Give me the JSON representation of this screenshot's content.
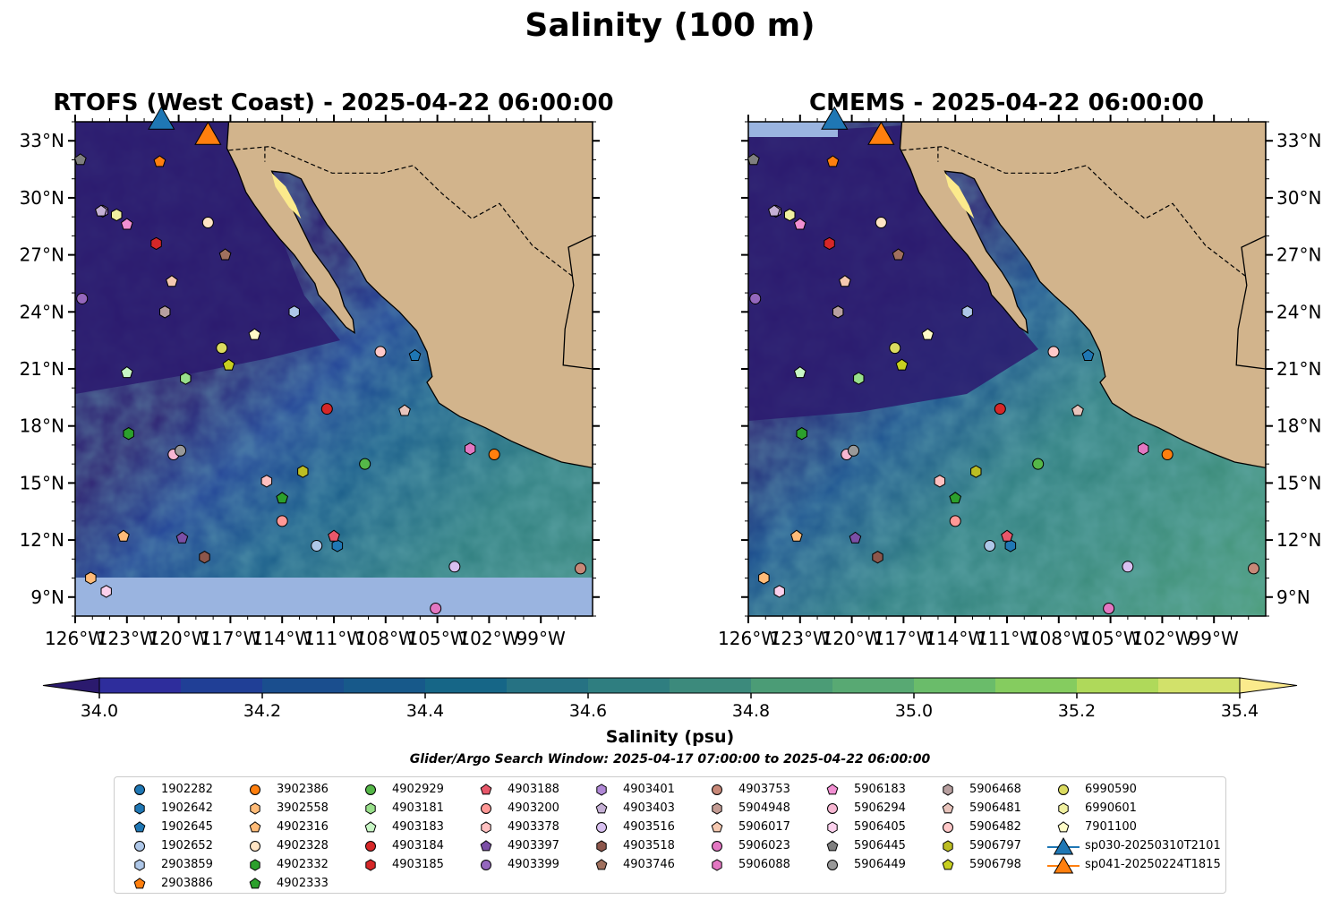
{
  "title": "Salinity (100 m)",
  "panels": [
    {
      "title": "RTOFS (West Coast) - 2025-04-22 06:00:00"
    },
    {
      "title": "CMEMS - 2025-04-22 06:00:00"
    }
  ],
  "colorbar": {
    "label": "Salinity (psu)",
    "ticks": [
      "34.0",
      "34.2",
      "34.4",
      "34.6",
      "34.8",
      "35.0",
      "35.2",
      "35.4"
    ],
    "levels": [
      34.0,
      34.1,
      34.2,
      34.3,
      34.4,
      34.5,
      34.6,
      34.7,
      34.8,
      34.9,
      35.0,
      35.1,
      35.2,
      35.3,
      35.4
    ],
    "colors": [
      "#2b1a6e",
      "#2e2d9c",
      "#203f96",
      "#1a4e8e",
      "#17598a",
      "#166687",
      "#267283",
      "#2f7e80",
      "#3c8a7c",
      "#4b9c76",
      "#58a973",
      "#6abc6a",
      "#85cc5f",
      "#afd95a",
      "#d2e16a",
      "#fbea8c"
    ],
    "extend": "both"
  },
  "search_window": "Glider/Argo Search Window: 2025-04-17 07:00:00 to 2025-04-22 06:00:00",
  "colors": {
    "land": "#d2b48c",
    "ocean_mask": "#9ab4e0",
    "river": "#a0b8d8"
  },
  "chart_data": {
    "type": "map",
    "variable": "Salinity",
    "depth": "100 m",
    "units": "psu",
    "xlim": [
      -126,
      -96
    ],
    "ylim": [
      8,
      34
    ],
    "xticks": [
      "126°W",
      "123°W",
      "120°W",
      "117°W",
      "114°W",
      "111°W",
      "108°W",
      "105°W",
      "102°W",
      "99°W"
    ],
    "yticks": [
      "9°N",
      "12°N",
      "15°N",
      "18°N",
      "21°N",
      "24°N",
      "27°N",
      "30°N",
      "33°N"
    ],
    "legend_position": "bottom",
    "floats": [
      {
        "id": "1902282",
        "marker": "circle",
        "color": "#1f77b4",
        "lon": null,
        "lat": null
      },
      {
        "id": "1902642",
        "marker": "hexagon",
        "color": "#1f77b4",
        "lon": -110.8,
        "lat": 11.7
      },
      {
        "id": "1902645",
        "marker": "pentagon",
        "color": "#1f77b4",
        "lon": -106.3,
        "lat": 21.7
      },
      {
        "id": "1902652",
        "marker": "circle",
        "color": "#aec7e8",
        "lon": -112.0,
        "lat": 11.7
      },
      {
        "id": "2903859",
        "marker": "hexagon",
        "color": "#aec7e8",
        "lon": -113.3,
        "lat": 24.0
      },
      {
        "id": "2903886",
        "marker": "pentagon",
        "color": "#ff7f0e",
        "lon": -121.1,
        "lat": 31.9
      },
      {
        "id": "3902386",
        "marker": "circle",
        "color": "#ff7f0e",
        "lon": -101.7,
        "lat": 16.5
      },
      {
        "id": "3902558",
        "marker": "hexagon",
        "color": "#ffbb78",
        "lon": -125.1,
        "lat": 10.0
      },
      {
        "id": "4902316",
        "marker": "pentagon",
        "color": "#ffbb78",
        "lon": -123.2,
        "lat": 12.2
      },
      {
        "id": "4902328",
        "marker": "circle",
        "color": "#ffe4c4",
        "lon": -118.3,
        "lat": 28.7
      },
      {
        "id": "4902332",
        "marker": "hexagon",
        "color": "#2ca02c",
        "lon": -122.9,
        "lat": 17.6
      },
      {
        "id": "4902333",
        "marker": "pentagon",
        "color": "#2ca02c",
        "lon": -114.0,
        "lat": 14.2
      },
      {
        "id": "4902929",
        "marker": "circle",
        "color": "#55b748",
        "lon": -109.2,
        "lat": 16.0
      },
      {
        "id": "4903181",
        "marker": "hexagon",
        "color": "#98df8a",
        "lon": -119.6,
        "lat": 20.5
      },
      {
        "id": "4903183",
        "marker": "pentagon",
        "color": "#c8f7c5",
        "lon": -123.0,
        "lat": 20.8
      },
      {
        "id": "4903184",
        "marker": "circle",
        "color": "#d62728",
        "lon": -111.4,
        "lat": 18.9
      },
      {
        "id": "4903185",
        "marker": "hexagon",
        "color": "#d62728",
        "lon": -121.3,
        "lat": 27.6
      },
      {
        "id": "4903188",
        "marker": "pentagon",
        "color": "#e8576a",
        "lon": -111.0,
        "lat": 12.2
      },
      {
        "id": "4903200",
        "marker": "circle",
        "color": "#ff9896",
        "lon": -114.0,
        "lat": 13.0
      },
      {
        "id": "4903378",
        "marker": "hexagon",
        "color": "#ffc0c0",
        "lon": -114.9,
        "lat": 15.1
      },
      {
        "id": "4903397",
        "marker": "pentagon",
        "color": "#7b4fa6",
        "lon": -119.8,
        "lat": 12.1
      },
      {
        "id": "4903399",
        "marker": "circle",
        "color": "#9467bd",
        "lon": -125.6,
        "lat": 24.7
      },
      {
        "id": "4903401",
        "marker": "hexagon",
        "color": "#b088d6",
        "lon": -124.4,
        "lat": 29.3
      },
      {
        "id": "4903403",
        "marker": "pentagon",
        "color": "#c5b0d5",
        "lon": -124.5,
        "lat": 29.3
      },
      {
        "id": "4903516",
        "marker": "circle",
        "color": "#d8c0f0",
        "lon": -104.0,
        "lat": 10.6
      },
      {
        "id": "4903518",
        "marker": "hexagon",
        "color": "#8c564b",
        "lon": -118.5,
        "lat": 11.1
      },
      {
        "id": "4903746",
        "marker": "pentagon",
        "color": "#a0705e",
        "lon": -117.3,
        "lat": 27.0
      },
      {
        "id": "4903753",
        "marker": "circle",
        "color": "#c88878",
        "lon": -96.7,
        "lat": 10.5
      },
      {
        "id": "5904948",
        "marker": "hexagon",
        "color": "#c49c94",
        "lon": -120.8,
        "lat": 24.0
      },
      {
        "id": "5906017",
        "marker": "pentagon",
        "color": "#f5c8b0",
        "lon": -120.4,
        "lat": 25.6
      },
      {
        "id": "5906023",
        "marker": "circle",
        "color": "#e377c2",
        "lon": -105.1,
        "lat": 8.4
      },
      {
        "id": "5906088",
        "marker": "hexagon",
        "color": "#e377c2",
        "lon": -103.1,
        "lat": 16.8
      },
      {
        "id": "5906183",
        "marker": "pentagon",
        "color": "#f28fd2",
        "lon": -123.0,
        "lat": 28.6
      },
      {
        "id": "5906294",
        "marker": "circle",
        "color": "#f7b6d2",
        "lon": -120.3,
        "lat": 16.5
      },
      {
        "id": "5906405",
        "marker": "hexagon",
        "color": "#fbd0ec",
        "lon": -124.2,
        "lat": 9.3
      },
      {
        "id": "5906445",
        "marker": "pentagon",
        "color": "#7f7f7f",
        "lon": -125.7,
        "lat": 32.0
      },
      {
        "id": "5906449",
        "marker": "circle",
        "color": "#999999",
        "lon": -119.9,
        "lat": 16.7
      },
      {
        "id": "5906468",
        "marker": "hexagon",
        "color": "#b8a0a0",
        "lon": -120.8,
        "lat": 24.0
      },
      {
        "id": "5906481",
        "marker": "pentagon",
        "color": "#e8c4bc",
        "lon": -106.9,
        "lat": 18.8
      },
      {
        "id": "5906482",
        "marker": "circle",
        "color": "#ffc8c8",
        "lon": -108.3,
        "lat": 21.9
      },
      {
        "id": "5906797",
        "marker": "hexagon",
        "color": "#bcbd22",
        "lon": -112.8,
        "lat": 15.6
      },
      {
        "id": "5906798",
        "marker": "pentagon",
        "color": "#c8d020",
        "lon": -117.1,
        "lat": 21.2
      },
      {
        "id": "6990590",
        "marker": "circle",
        "color": "#dbdb60",
        "lon": -117.5,
        "lat": 22.1
      },
      {
        "id": "6990601",
        "marker": "hexagon",
        "color": "#f0f0a0",
        "lon": -123.6,
        "lat": 29.1
      },
      {
        "id": "7901100",
        "marker": "pentagon",
        "color": "#fffcc8",
        "lon": -115.6,
        "lat": 22.8
      }
    ],
    "gliders": [
      {
        "id": "sp030-20250310T2101",
        "marker": "triangle",
        "color": "#1f77b4",
        "lon": -121.0,
        "lat": 34.0
      },
      {
        "id": "sp041-20250224T1815",
        "marker": "triangle",
        "color": "#ff7f0e",
        "lon": -118.3,
        "lat": 33.2
      }
    ]
  }
}
